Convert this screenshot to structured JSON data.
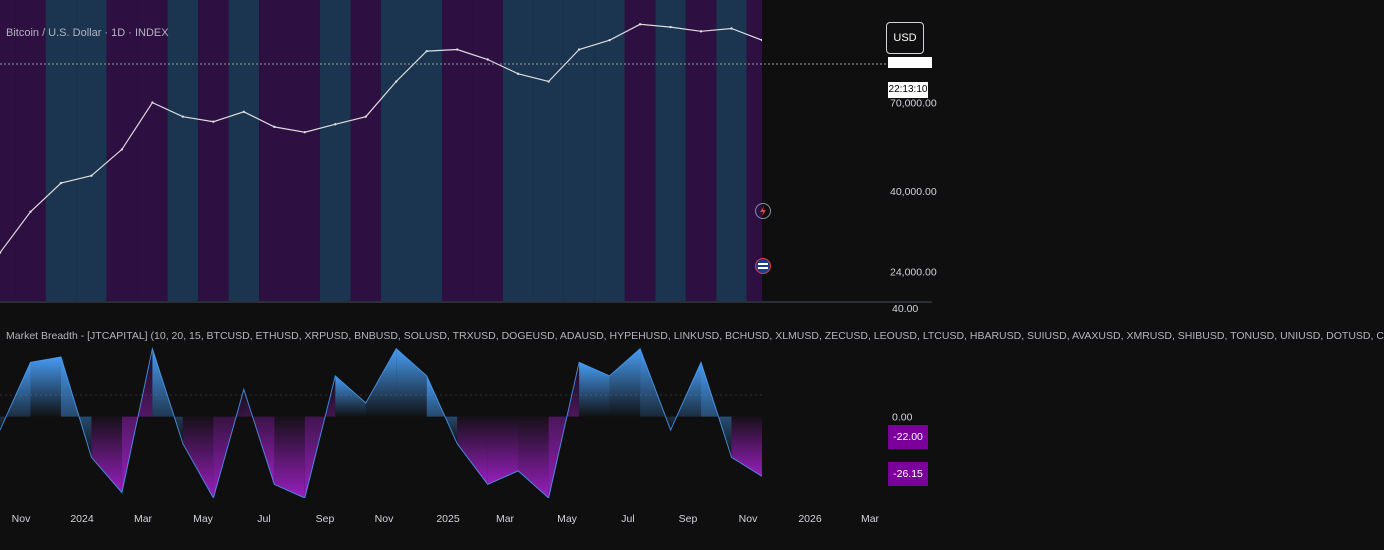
{
  "price_pane": {
    "symbol_title": "Bitcoin / U.S. Dollar · 1D · INDEX",
    "currency_button": "USD",
    "axis_labels": [
      "70,000.00",
      "40,000.00",
      "24,000.00"
    ],
    "price_tag": "",
    "countdown": "22:13:10"
  },
  "indicator_pane": {
    "title": "Market Breadth - [JTCAPITAL] (10, 20, 15, BTCUSD, ETHUSD, XRPUSD, BNBUSD, SOLUSD, TRXUSD, DOGEUSD, ADAUSD, HYPEHUSD, LINKUSD, BCHUSD, XLMUSD, ZECUSD, LEOUSD, LTCUSD, HBARUSD, SUIUSD, AVAXUSD, XMRUSD, SHIBUSD, TONUSD, UNIUSD, DOTUSD, C",
    "axis_labels": [
      "40.00",
      "0.00"
    ],
    "value_tags": [
      "-22.00",
      "-26.15"
    ]
  },
  "time_axis": [
    "Nov",
    "2024",
    "Mar",
    "May",
    "Jul",
    "Sep",
    "Nov",
    "2025",
    "Mar",
    "May",
    "Jul",
    "Sep",
    "Nov",
    "2026",
    "Mar"
  ],
  "colors": {
    "background": "#0f0f0f",
    "bullish_band": "#1b3550",
    "bearish_band": "#2e0f42",
    "price_line": "#dcdcdc",
    "positive": "#4aa3ff",
    "negative": "#a020c8"
  },
  "chart_data": [
    {
      "type": "line",
      "title": "Bitcoin / U.S. Dollar · 1D · INDEX",
      "x": [
        "2023-10",
        "2023-11",
        "2023-12",
        "2024-01",
        "2024-02",
        "2024-03",
        "2024-04",
        "2024-05",
        "2024-06",
        "2024-07",
        "2024-08",
        "2024-09",
        "2024-10",
        "2024-11",
        "2024-12",
        "2025-01",
        "2025-02",
        "2025-03",
        "2025-04",
        "2025-05",
        "2025-06",
        "2025-07",
        "2025-08",
        "2025-09",
        "2025-10",
        "2025-11"
      ],
      "values": [
        27000,
        35000,
        42000,
        44000,
        52000,
        70000,
        64000,
        62000,
        66000,
        60000,
        58000,
        61000,
        64000,
        80000,
        97000,
        98000,
        92000,
        84000,
        80000,
        98000,
        104000,
        115000,
        113000,
        110000,
        112000,
        104000
      ],
      "y_scale": "log",
      "ylim": [
        20000,
        130000
      ],
      "y_ticks": [
        24000,
        40000,
        70000
      ],
      "background_regimes": [
        "bearish",
        "bearish",
        "bullish",
        "bullish",
        "bearish",
        "bearish",
        "bullish",
        "bearish",
        "bullish",
        "bearish",
        "bearish",
        "bullish",
        "bearish",
        "bullish",
        "bullish",
        "bearish",
        "bearish",
        "bullish",
        "bullish",
        "bullish",
        "bullish",
        "bearish",
        "bullish",
        "bearish",
        "bullish",
        "bearish"
      ]
    },
    {
      "type": "area",
      "title": "Market Breadth - [JTCAPITAL]",
      "x": [
        "2023-10",
        "2023-11",
        "2023-12",
        "2024-01",
        "2024-02",
        "2024-03",
        "2024-04",
        "2024-05",
        "2024-06",
        "2024-07",
        "2024-08",
        "2024-09",
        "2024-10",
        "2024-11",
        "2024-12",
        "2025-01",
        "2025-02",
        "2025-03",
        "2025-04",
        "2025-05",
        "2025-06",
        "2025-07",
        "2025-08",
        "2025-09",
        "2025-10",
        "2025-11"
      ],
      "values": [
        -5,
        20,
        22,
        -15,
        -28,
        25,
        -10,
        -30,
        10,
        -25,
        -30,
        15,
        5,
        25,
        15,
        -10,
        -25,
        -20,
        -30,
        20,
        15,
        25,
        -5,
        20,
        -15,
        -22
      ],
      "ylim": [
        -30,
        40
      ],
      "y_ticks": [
        40,
        0
      ]
    }
  ]
}
